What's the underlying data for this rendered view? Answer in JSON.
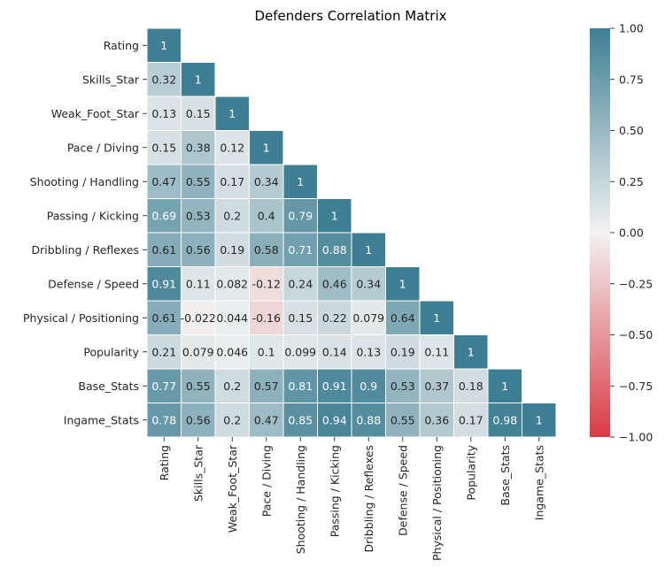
{
  "chart_data": {
    "type": "heatmap",
    "title": "Defenders Correlation Matrix",
    "xlabel": "",
    "ylabel": "",
    "labels": [
      "Rating",
      "Skills_Star",
      "Weak_Foot_Star",
      "Pace / Diving",
      "Shooting / Handling",
      "Passing / Kicking",
      "Dribbling / Reflexes",
      "Defense / Speed",
      "Physical / Positioning",
      "Popularity",
      "Base_Stats",
      "Ingame_Stats"
    ],
    "mask": "upper-triangle",
    "cell_text": [
      [
        "1"
      ],
      [
        "0.32",
        "1"
      ],
      [
        "0.13",
        "0.15",
        "1"
      ],
      [
        "0.15",
        "0.38",
        "0.12",
        "1"
      ],
      [
        "0.47",
        "0.55",
        "0.17",
        "0.34",
        "1"
      ],
      [
        "0.69",
        "0.53",
        "0.2",
        "0.4",
        "0.79",
        "1"
      ],
      [
        "0.61",
        "0.56",
        "0.19",
        "0.58",
        "0.71",
        "0.88",
        "1"
      ],
      [
        "0.91",
        "0.11",
        "0.082",
        "-0.12",
        "0.24",
        "0.46",
        "0.34",
        "1"
      ],
      [
        "0.61",
        "-0.022",
        "0.044",
        "-0.16",
        "0.15",
        "0.22",
        "0.079",
        "0.64",
        "1"
      ],
      [
        "0.21",
        "0.079",
        "0.046",
        "0.1",
        "0.099",
        "0.14",
        "0.13",
        "0.19",
        "0.11",
        "1"
      ],
      [
        "0.77",
        "0.55",
        "0.2",
        "0.57",
        "0.81",
        "0.91",
        "0.9",
        "0.53",
        "0.37",
        "0.18",
        "1"
      ],
      [
        "0.78",
        "0.56",
        "0.2",
        "0.47",
        "0.85",
        "0.94",
        "0.88",
        "0.55",
        "0.36",
        "0.17",
        "0.98",
        "1"
      ]
    ],
    "colorbar": {
      "range": [
        -1.0,
        1.0
      ],
      "ticks": [
        "1.00",
        "0.75",
        "0.50",
        "0.25",
        "0.00",
        "−0.25",
        "−0.50",
        "−0.75",
        "−1.00"
      ],
      "tick_values": [
        1.0,
        0.75,
        0.5,
        0.25,
        0.0,
        -0.25,
        -0.5,
        -0.75,
        -1.0
      ],
      "colors": {
        "negative": "#DA3B46",
        "center": "#F2F2F2",
        "positive": "#3F7F93"
      }
    }
  }
}
